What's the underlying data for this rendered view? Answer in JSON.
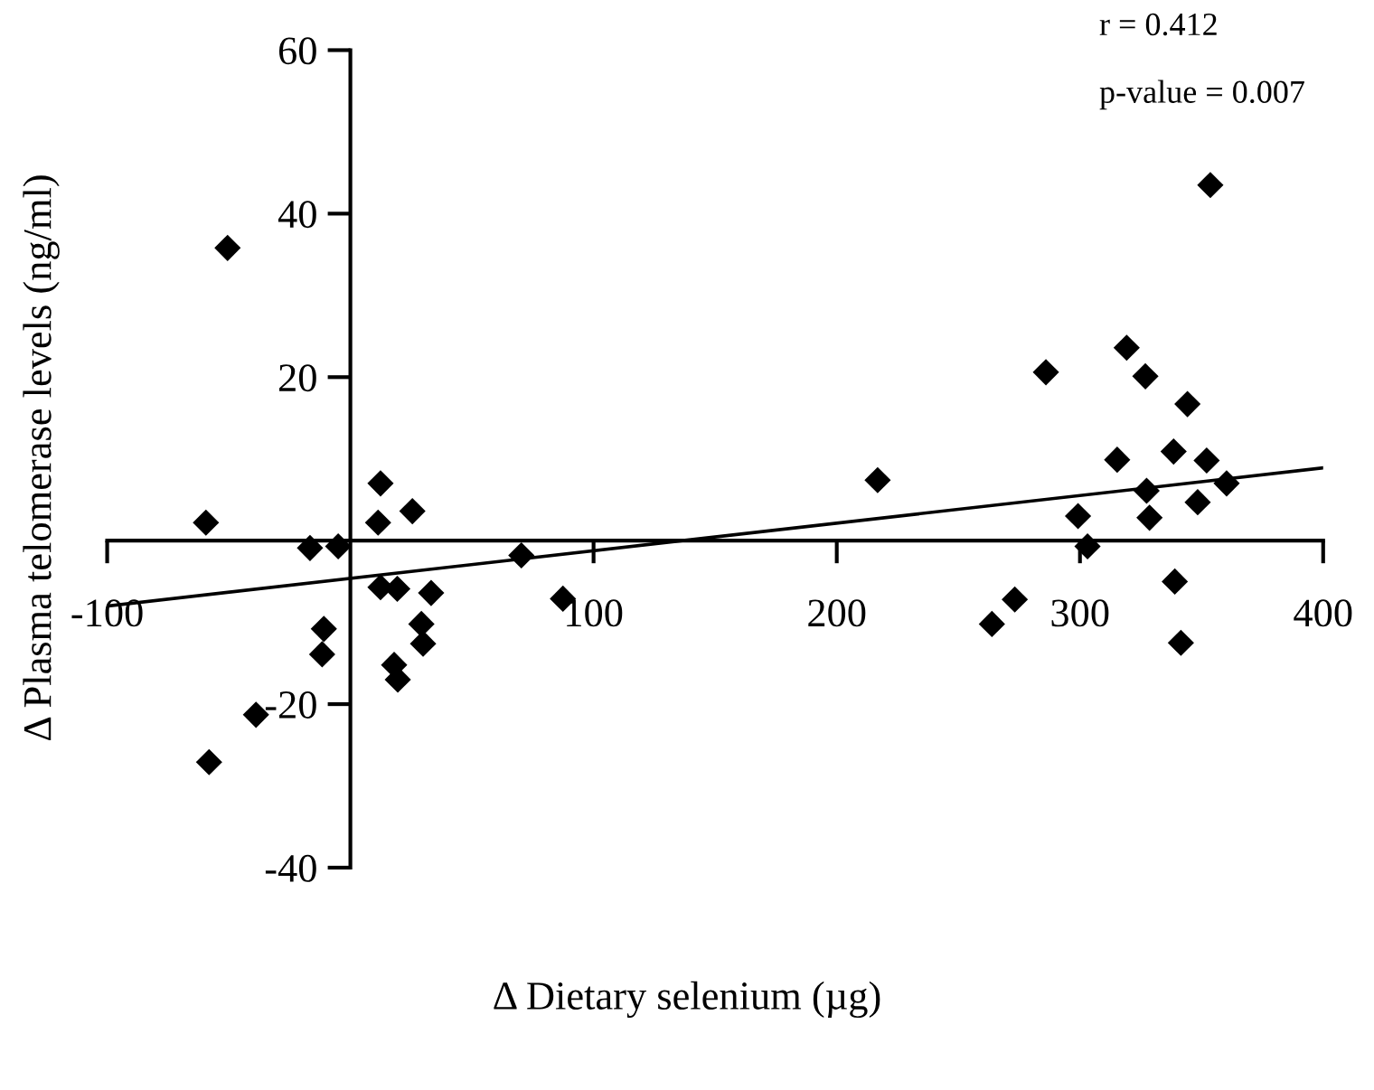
{
  "chart_data": {
    "type": "scatter",
    "xlabel": "Δ Dietary selenium (µg)",
    "ylabel": "Δ Plasma telomerase levels (ng/ml)",
    "annotations": [
      "r = 0.412",
      "p-value = 0.007"
    ],
    "xlim": [
      -100,
      400
    ],
    "ylim": [
      -40,
      60
    ],
    "xticks": [
      -100,
      100,
      200,
      300,
      400
    ],
    "yticks": [
      -40,
      -20,
      20,
      40,
      60
    ],
    "grid": false,
    "legend": false,
    "marker": "diamond",
    "series": [
      {
        "color": "#000000",
        "x": [
          -50.5,
          -59.4,
          -16.6,
          -5.0,
          12.4,
          11.4,
          25.5,
          12.4,
          19.3,
          33.2,
          -10.9,
          -11.6,
          29.2,
          29.9,
          18.0,
          19.5,
          -38.8,
          -58.1,
          70.3,
          87.4,
          216.8,
          286.0,
          319.2,
          326.9,
          344.2,
          353.6,
          315.3,
          338.5,
          352.1,
          360.3,
          327.4,
          299.2,
          328.6,
          348.4,
          303.1,
          339.0,
          273.2,
          263.8,
          341.5
        ],
        "values": [
          35.8,
          2.2,
          -0.9,
          -0.7,
          7.0,
          2.2,
          3.6,
          -5.7,
          -5.9,
          -6.4,
          -10.8,
          -13.9,
          -10.2,
          -12.6,
          -15.2,
          -17.0,
          -21.3,
          -27.1,
          -1.8,
          -7.1,
          7.4,
          20.6,
          23.6,
          20.1,
          16.7,
          43.5,
          9.9,
          10.9,
          9.8,
          7.0,
          6.1,
          3.0,
          2.8,
          4.7,
          -0.7,
          -5.0,
          -7.2,
          -10.2,
          -12.5
        ]
      },
      {
        "type": "line",
        "color": "#000000",
        "marker": "none",
        "line_style": "solid",
        "x": [
          -100,
          400
        ],
        "values": [
          -8.0,
          8.9
        ]
      }
    ]
  }
}
